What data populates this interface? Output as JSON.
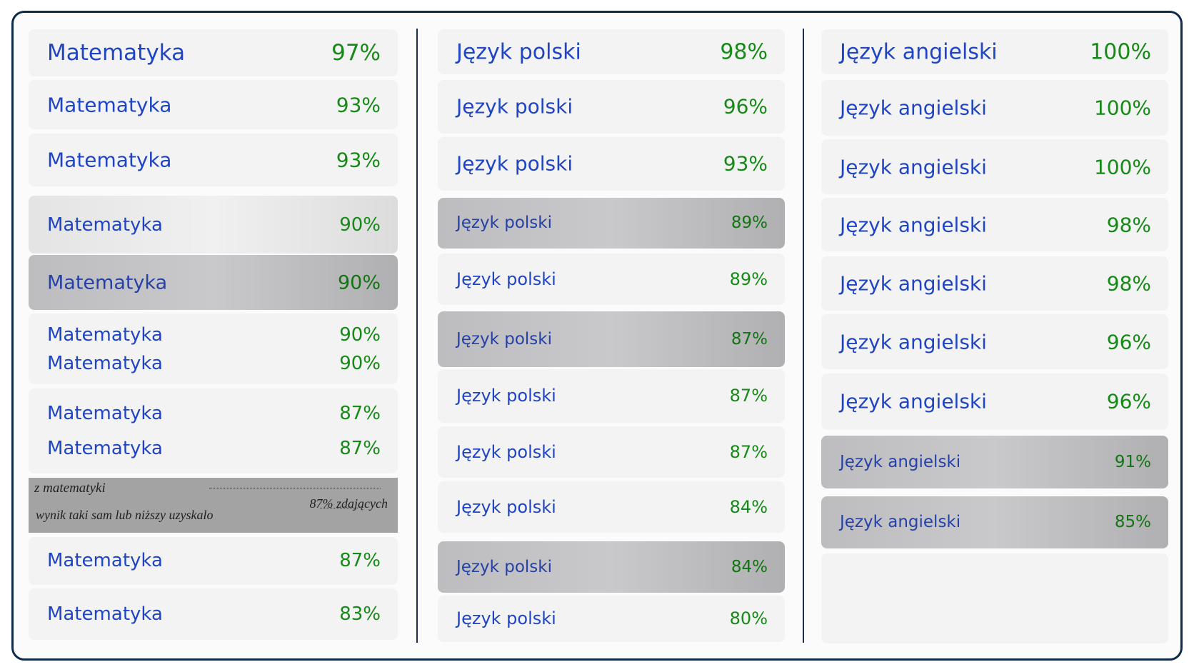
{
  "columns": [
    {
      "cards": [
        {
          "rows": [
            {
              "subject": "Matematyka",
              "score": "97%"
            }
          ]
        },
        {
          "rows": [
            {
              "subject": "Matematyka",
              "score": "93%"
            }
          ]
        },
        {
          "rows": [
            {
              "subject": "Matematyka",
              "score": "93%"
            }
          ]
        },
        {
          "rows": [
            {
              "subject": "Matematyka",
              "score": "90%"
            }
          ]
        },
        {
          "rows": [
            {
              "subject": "Matematyka",
              "score": "90%"
            }
          ]
        },
        {
          "rows": [
            {
              "subject": "Matematyka",
              "score": "90%"
            },
            {
              "subject": "Matematyka",
              "score": "90%"
            }
          ]
        },
        {
          "rows": [
            {
              "subject": "Matematyka",
              "score": "87%"
            },
            {
              "subject": "Matematyka",
              "score": "87%"
            }
          ]
        },
        {
          "scan": {
            "heading": "z matematyki",
            "line": "wynik taki sam lub niższy uzyskalo",
            "result": "87% zdających"
          }
        },
        {
          "rows": [
            {
              "subject": "Matematyka",
              "score": "87%"
            }
          ]
        },
        {
          "rows": [
            {
              "subject": "Matematyka",
              "score": "83%"
            }
          ]
        }
      ]
    },
    {
      "cards": [
        {
          "rows": [
            {
              "subject": "Język polski",
              "score": "98%"
            }
          ]
        },
        {
          "rows": [
            {
              "subject": "Język polski",
              "score": "96%"
            }
          ]
        },
        {
          "rows": [
            {
              "subject": "Język polski",
              "score": "93%"
            }
          ]
        },
        {
          "rows": [
            {
              "subject": "Język polski",
              "score": "89%"
            }
          ]
        },
        {
          "rows": [
            {
              "subject": "Język polski",
              "score": "89%"
            }
          ]
        },
        {
          "rows": [
            {
              "subject": "Język polski",
              "score": "87%"
            }
          ]
        },
        {
          "rows": [
            {
              "subject": "Język polski",
              "score": "87%"
            }
          ]
        },
        {
          "rows": [
            {
              "subject": "Język polski",
              "score": "87%"
            }
          ]
        },
        {
          "rows": [
            {
              "subject": "Język polski",
              "score": "84%"
            }
          ]
        },
        {
          "rows": [
            {
              "subject": "Język polski",
              "score": "84%"
            }
          ]
        },
        {
          "rows": [
            {
              "subject": "Język polski",
              "score": "80%"
            }
          ]
        }
      ]
    },
    {
      "cards": [
        {
          "rows": [
            {
              "subject": "Język angielski",
              "score": "100%"
            }
          ]
        },
        {
          "rows": [
            {
              "subject": "Język angielski",
              "score": "100%"
            }
          ]
        },
        {
          "rows": [
            {
              "subject": "Język angielski",
              "score": "100%"
            }
          ]
        },
        {
          "rows": [
            {
              "subject": "Język angielski",
              "score": "98%"
            }
          ]
        },
        {
          "rows": [
            {
              "subject": "Język angielski",
              "score": "98%"
            }
          ]
        },
        {
          "rows": [
            {
              "subject": "Język angielski",
              "score": "96%"
            }
          ]
        },
        {
          "rows": [
            {
              "subject": "Język angielski",
              "score": "96%"
            }
          ]
        },
        {
          "rows": [
            {
              "subject": "Język angielski",
              "score": "91%"
            }
          ]
        },
        {
          "rows": [
            {
              "subject": "Język angielski",
              "score": "85%"
            }
          ]
        }
      ]
    }
  ]
}
